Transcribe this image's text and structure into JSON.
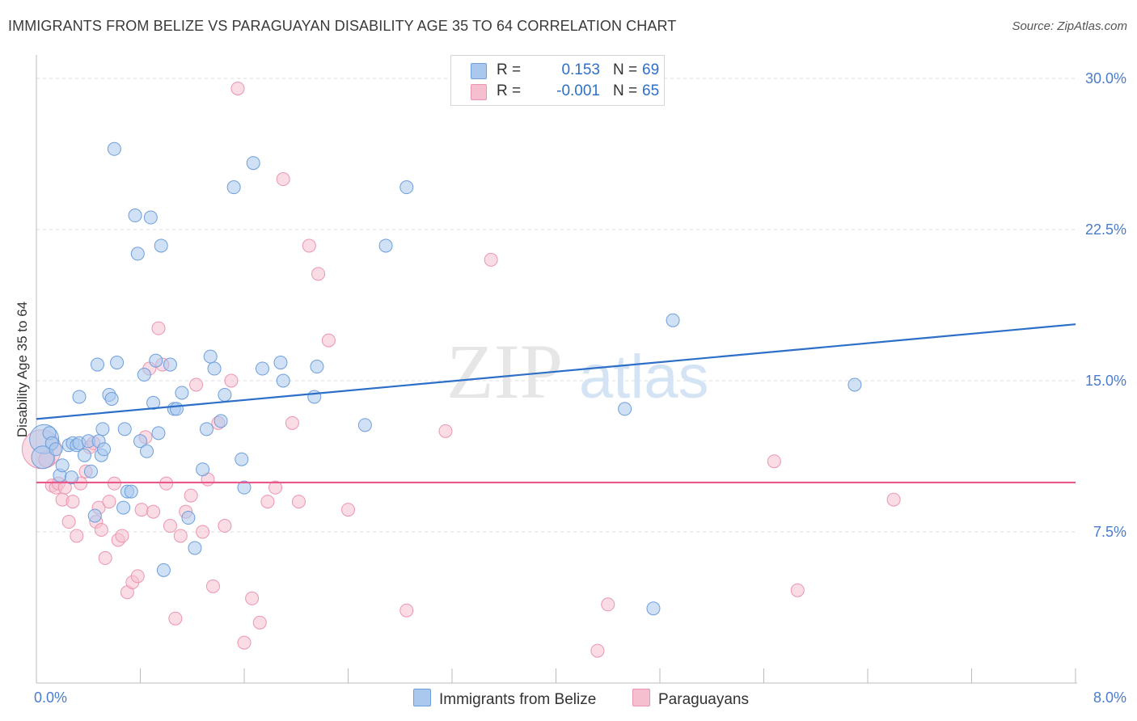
{
  "title": "IMMIGRANTS FROM BELIZE VS PARAGUAYAN DISABILITY AGE 35 TO 64 CORRELATION CHART",
  "source": "Source: ZipAtlas.com",
  "watermark": {
    "zip": "ZIP",
    "atlas": "atlas"
  },
  "legend": {
    "series1": {
      "r_label": "R =",
      "r_value": "0.153",
      "n_label": "N =",
      "n_value": "69"
    },
    "series2": {
      "r_label": "R =",
      "r_value": "-0.001",
      "n_label": "N =",
      "n_value": "65"
    }
  },
  "bottom_legend": {
    "series1": "Immigrants from Belize",
    "series2": "Paraguayans"
  },
  "colors": {
    "series1_fill": "#aac8ee",
    "series1_stroke": "#6d9edb",
    "series1_line": "#2d6fc8",
    "series2_fill": "#f6bfd0",
    "series2_stroke": "#ec95b0",
    "series2_line": "#e8588a",
    "axis_label": "#4a7ccc",
    "grid": "#dddddd"
  },
  "chart_data": {
    "type": "scatter",
    "title": "IMMIGRANTS FROM BELIZE VS PARAGUAYAN DISABILITY AGE 35 TO 64 CORRELATION CHART",
    "xlabel": "",
    "ylabel": "Disability Age 35 to 64",
    "xlim": [
      0,
      8
    ],
    "ylim": [
      0,
      30
    ],
    "x_tick_labels": [
      {
        "value": 0,
        "label": "0.0%"
      },
      {
        "value": 8,
        "label": "8.0%"
      }
    ],
    "y_tick_labels": [
      {
        "value": 7.5,
        "label": "7.5%"
      },
      {
        "value": 15,
        "label": "15.0%"
      },
      {
        "value": 22.5,
        "label": "22.5%"
      },
      {
        "value": 30,
        "label": "30.0%"
      }
    ],
    "x_minor_ticks": [
      0.8,
      1.6,
      2.4,
      3.2,
      4.0,
      4.8,
      5.6,
      6.4,
      7.2,
      8.0
    ],
    "series": [
      {
        "name": "Immigrants from Belize",
        "R": 0.153,
        "N": 69,
        "trendline": {
          "x": [
            0,
            8
          ],
          "y": [
            13.1,
            17.8
          ]
        },
        "points": [
          [
            0.06,
            12.1,
            18
          ],
          [
            0.05,
            11.2,
            14
          ],
          [
            0.1,
            12.4,
            8
          ],
          [
            0.12,
            11.9,
            8
          ],
          [
            0.15,
            11.6,
            8
          ],
          [
            0.18,
            10.3,
            8
          ],
          [
            0.2,
            10.8,
            8
          ],
          [
            0.25,
            11.8,
            8
          ],
          [
            0.27,
            10.2,
            8
          ],
          [
            0.28,
            11.9,
            8
          ],
          [
            0.31,
            11.8,
            8
          ],
          [
            0.33,
            11.9,
            8
          ],
          [
            0.37,
            11.3,
            8
          ],
          [
            0.4,
            12.0,
            8
          ],
          [
            0.42,
            10.5,
            8
          ],
          [
            0.45,
            8.3,
            8
          ],
          [
            0.48,
            12.0,
            8
          ],
          [
            0.5,
            11.3,
            8
          ],
          [
            0.52,
            11.6,
            8
          ],
          [
            0.33,
            14.2,
            8
          ],
          [
            0.47,
            15.8,
            8
          ],
          [
            0.51,
            12.6,
            8
          ],
          [
            0.56,
            14.3,
            8
          ],
          [
            0.58,
            14.1,
            8
          ],
          [
            0.6,
            26.5,
            8
          ],
          [
            0.62,
            15.9,
            8
          ],
          [
            0.67,
            8.7,
            8
          ],
          [
            0.68,
            12.6,
            8
          ],
          [
            0.7,
            9.5,
            8
          ],
          [
            0.73,
            9.5,
            8
          ],
          [
            0.76,
            23.2,
            8
          ],
          [
            0.78,
            21.3,
            8
          ],
          [
            0.8,
            12.0,
            8
          ],
          [
            0.83,
            15.3,
            8
          ],
          [
            0.85,
            11.5,
            8
          ],
          [
            0.88,
            23.1,
            8
          ],
          [
            0.9,
            13.9,
            8
          ],
          [
            0.92,
            16.0,
            8
          ],
          [
            0.94,
            12.4,
            8
          ],
          [
            0.96,
            21.7,
            8
          ],
          [
            0.98,
            5.6,
            8
          ],
          [
            1.03,
            15.8,
            8
          ],
          [
            1.06,
            13.6,
            8
          ],
          [
            1.08,
            13.6,
            8
          ],
          [
            1.12,
            14.4,
            8
          ],
          [
            1.17,
            8.2,
            8
          ],
          [
            1.22,
            6.7,
            8
          ],
          [
            1.28,
            10.6,
            8
          ],
          [
            1.31,
            12.6,
            8
          ],
          [
            1.34,
            16.2,
            8
          ],
          [
            1.37,
            15.6,
            8
          ],
          [
            1.42,
            13.0,
            8
          ],
          [
            1.45,
            14.3,
            8
          ],
          [
            1.52,
            24.6,
            8
          ],
          [
            1.58,
            11.1,
            8
          ],
          [
            1.6,
            9.7,
            8
          ],
          [
            1.67,
            25.8,
            8
          ],
          [
            1.74,
            15.6,
            8
          ],
          [
            1.88,
            15.9,
            8
          ],
          [
            1.9,
            15.0,
            8
          ],
          [
            2.14,
            14.2,
            8
          ],
          [
            2.16,
            15.7,
            8
          ],
          [
            2.53,
            12.8,
            8
          ],
          [
            2.69,
            21.7,
            8
          ],
          [
            2.85,
            24.6,
            8
          ],
          [
            4.53,
            13.6,
            8
          ],
          [
            4.75,
            3.7,
            8
          ],
          [
            4.9,
            18.0,
            8
          ],
          [
            6.3,
            14.8,
            8
          ]
        ]
      },
      {
        "name": "Paraguayans",
        "R": -0.001,
        "N": 65,
        "trendline": {
          "x": [
            0,
            8
          ],
          "y": [
            9.95,
            9.95
          ]
        },
        "points": [
          [
            0.04,
            11.6,
            24
          ],
          [
            0.08,
            11.1,
            10
          ],
          [
            0.12,
            9.8,
            8
          ],
          [
            0.15,
            9.7,
            8
          ],
          [
            0.17,
            9.9,
            8
          ],
          [
            0.2,
            9.1,
            8
          ],
          [
            0.22,
            9.7,
            8
          ],
          [
            0.25,
            8.0,
            8
          ],
          [
            0.28,
            9.0,
            8
          ],
          [
            0.31,
            7.3,
            8
          ],
          [
            0.34,
            9.9,
            8
          ],
          [
            0.38,
            10.5,
            8
          ],
          [
            0.41,
            11.7,
            8
          ],
          [
            0.44,
            11.9,
            8
          ],
          [
            0.46,
            8.0,
            8
          ],
          [
            0.48,
            8.7,
            8
          ],
          [
            0.5,
            7.6,
            8
          ],
          [
            0.53,
            6.2,
            8
          ],
          [
            0.56,
            9.0,
            8
          ],
          [
            0.6,
            9.9,
            8
          ],
          [
            0.63,
            7.1,
            8
          ],
          [
            0.66,
            7.3,
            8
          ],
          [
            0.7,
            4.5,
            8
          ],
          [
            0.74,
            5.0,
            8
          ],
          [
            0.78,
            5.3,
            8
          ],
          [
            0.81,
            8.6,
            8
          ],
          [
            0.84,
            12.2,
            8
          ],
          [
            0.87,
            15.6,
            8
          ],
          [
            0.9,
            8.5,
            8
          ],
          [
            0.94,
            17.6,
            8
          ],
          [
            0.97,
            15.8,
            8
          ],
          [
            1.0,
            9.9,
            8
          ],
          [
            1.03,
            7.8,
            8
          ],
          [
            1.07,
            3.2,
            8
          ],
          [
            1.11,
            7.3,
            8
          ],
          [
            1.15,
            8.5,
            8
          ],
          [
            1.19,
            9.3,
            8
          ],
          [
            1.23,
            14.8,
            8
          ],
          [
            1.28,
            7.5,
            8
          ],
          [
            1.32,
            10.1,
            8
          ],
          [
            1.36,
            4.8,
            8
          ],
          [
            1.4,
            12.9,
            8
          ],
          [
            1.45,
            7.8,
            8
          ],
          [
            1.5,
            15.0,
            8
          ],
          [
            1.55,
            29.5,
            8
          ],
          [
            1.6,
            2.0,
            8
          ],
          [
            1.66,
            4.2,
            8
          ],
          [
            1.72,
            3.0,
            8
          ],
          [
            1.78,
            9.0,
            8
          ],
          [
            1.84,
            9.7,
            8
          ],
          [
            1.9,
            25.0,
            8
          ],
          [
            1.97,
            12.9,
            8
          ],
          [
            2.02,
            9.0,
            8
          ],
          [
            2.1,
            21.7,
            8
          ],
          [
            2.17,
            20.3,
            8
          ],
          [
            2.25,
            17.0,
            8
          ],
          [
            2.4,
            8.6,
            8
          ],
          [
            2.85,
            3.6,
            8
          ],
          [
            3.15,
            12.5,
            8
          ],
          [
            3.5,
            21.0,
            8
          ],
          [
            4.32,
            1.6,
            8
          ],
          [
            4.4,
            3.9,
            8
          ],
          [
            5.68,
            11.0,
            8
          ],
          [
            5.86,
            4.6,
            8
          ],
          [
            6.6,
            9.1,
            8
          ]
        ]
      }
    ]
  }
}
